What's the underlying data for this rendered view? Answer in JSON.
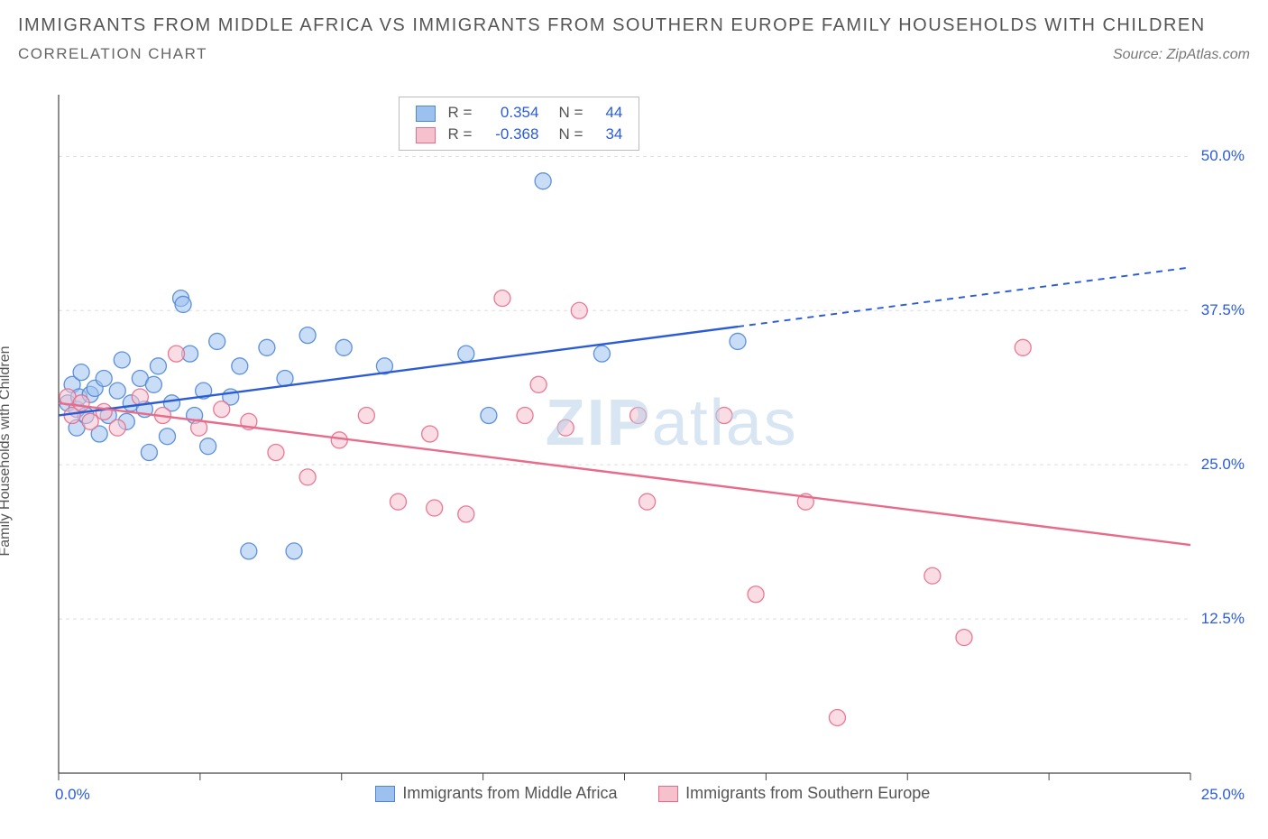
{
  "header": {
    "title": "IMMIGRANTS FROM MIDDLE AFRICA VS IMMIGRANTS FROM SOUTHERN EUROPE FAMILY HOUSEHOLDS WITH CHILDREN",
    "subtitle": "CORRELATION CHART",
    "source": "Source: ZipAtlas.com"
  },
  "chart": {
    "type": "scatter",
    "background_color": "#ffffff",
    "grid_color": "#dddddd",
    "axis_color": "#444444",
    "ylabel": "Family Households with Children",
    "label_fontsize": 16,
    "watermark": {
      "prefix": "ZIP",
      "suffix": "atlas",
      "color": "#b9d0e8"
    },
    "xlim": [
      0,
      25
    ],
    "ylim": [
      0,
      55
    ],
    "x_ticks": [
      0,
      3.125,
      6.25,
      9.375,
      12.5,
      15.625,
      18.75,
      21.875,
      25
    ],
    "x_tick_labels_visible": {
      "0": "0.0%",
      "25": "25.0%"
    },
    "y_gridlines": [
      12.5,
      25.0,
      37.5,
      50.0
    ],
    "y_tick_labels": [
      "12.5%",
      "25.0%",
      "37.5%",
      "50.0%"
    ],
    "marker_radius": 9,
    "marker_opacity": 0.55,
    "marker_stroke_opacity": 0.9,
    "line_width": 2.4,
    "series": [
      {
        "key": "middle_africa",
        "label": "Immigrants from Middle Africa",
        "color_fill": "#9cc1ef",
        "color_stroke": "#4f86d6",
        "line_color": "#2b5cd6",
        "R": "0.354",
        "N": "44",
        "regression": {
          "x1": 0,
          "y1": 29.0,
          "x2": 15.0,
          "y2": 36.2,
          "extend_to_x": 25,
          "extend_y": 41.0
        },
        "points": [
          [
            0.2,
            30.0
          ],
          [
            0.3,
            31.5
          ],
          [
            0.4,
            29.5
          ],
          [
            0.4,
            28.0
          ],
          [
            0.45,
            30.5
          ],
          [
            0.5,
            32.5
          ],
          [
            0.6,
            29.0
          ],
          [
            0.7,
            30.7
          ],
          [
            0.8,
            31.2
          ],
          [
            0.9,
            27.5
          ],
          [
            1.0,
            32.0
          ],
          [
            1.1,
            29.0
          ],
          [
            1.3,
            31.0
          ],
          [
            1.4,
            33.5
          ],
          [
            1.5,
            28.5
          ],
          [
            1.6,
            30.0
          ],
          [
            1.8,
            32.0
          ],
          [
            1.9,
            29.5
          ],
          [
            2.0,
            26.0
          ],
          [
            2.1,
            31.5
          ],
          [
            2.2,
            33.0
          ],
          [
            2.4,
            27.3
          ],
          [
            2.5,
            30.0
          ],
          [
            2.7,
            38.5
          ],
          [
            2.75,
            38.0
          ],
          [
            2.9,
            34.0
          ],
          [
            3.0,
            29.0
          ],
          [
            3.2,
            31.0
          ],
          [
            3.3,
            26.5
          ],
          [
            3.5,
            35.0
          ],
          [
            3.8,
            30.5
          ],
          [
            4.0,
            33.0
          ],
          [
            4.2,
            18.0
          ],
          [
            4.6,
            34.5
          ],
          [
            5.0,
            32.0
          ],
          [
            5.2,
            18.0
          ],
          [
            5.5,
            35.5
          ],
          [
            6.3,
            34.5
          ],
          [
            7.2,
            33.0
          ],
          [
            9.0,
            34.0
          ],
          [
            9.5,
            29.0
          ],
          [
            10.7,
            48.0
          ],
          [
            12.0,
            34.0
          ],
          [
            15.0,
            35.0
          ]
        ]
      },
      {
        "key": "southern_europe",
        "label": "Immigrants from Southern Europe",
        "color_fill": "#f6c1cd",
        "color_stroke": "#e86b8a",
        "line_color": "#e86b8a",
        "R": "-0.368",
        "N": "34",
        "regression": {
          "x1": 0,
          "y1": 30.0,
          "x2": 25.0,
          "y2": 18.5,
          "extend_to_x": 25,
          "extend_y": 18.5
        },
        "points": [
          [
            0.2,
            30.5
          ],
          [
            0.3,
            29.0
          ],
          [
            0.5,
            30.0
          ],
          [
            0.7,
            28.5
          ],
          [
            1.0,
            29.3
          ],
          [
            1.3,
            28.0
          ],
          [
            1.8,
            30.5
          ],
          [
            2.3,
            29.0
          ],
          [
            2.6,
            34.0
          ],
          [
            3.1,
            28.0
          ],
          [
            3.6,
            29.5
          ],
          [
            4.2,
            28.5
          ],
          [
            4.8,
            26.0
          ],
          [
            5.5,
            24.0
          ],
          [
            6.2,
            27.0
          ],
          [
            6.8,
            29.0
          ],
          [
            7.5,
            22.0
          ],
          [
            8.2,
            27.5
          ],
          [
            8.3,
            21.5
          ],
          [
            9.8,
            38.5
          ],
          [
            10.3,
            29.0
          ],
          [
            10.6,
            31.5
          ],
          [
            11.2,
            28.0
          ],
          [
            11.5,
            37.5
          ],
          [
            12.8,
            29.0
          ],
          [
            13.0,
            22.0
          ],
          [
            14.7,
            29.0
          ],
          [
            15.4,
            14.5
          ],
          [
            16.5,
            22.0
          ],
          [
            17.2,
            4.5
          ],
          [
            19.3,
            16.0
          ],
          [
            20.0,
            11.0
          ],
          [
            21.3,
            34.5
          ],
          [
            9.0,
            21.0
          ]
        ]
      }
    ],
    "legend_top": {
      "R_label": "R =",
      "N_label": "N =",
      "value_color": "#2b5cd6"
    }
  }
}
